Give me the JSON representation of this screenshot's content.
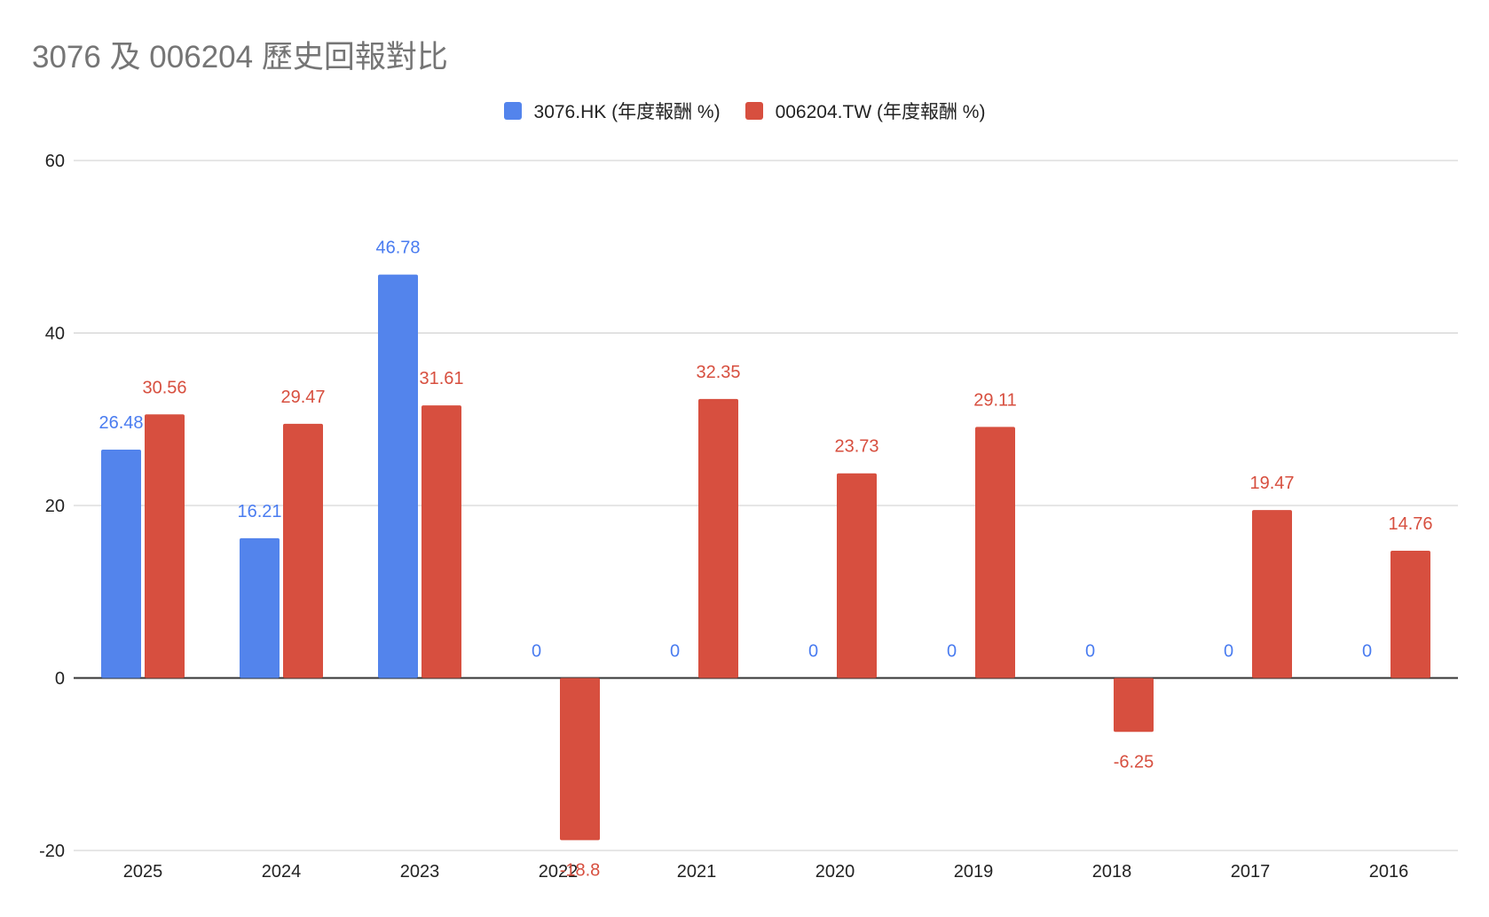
{
  "chart_data": {
    "type": "bar",
    "title": "3076 及 006204 歷史回報對比",
    "categories": [
      "2025",
      "2024",
      "2023",
      "2022",
      "2021",
      "2020",
      "2019",
      "2018",
      "2017",
      "2016"
    ],
    "series": [
      {
        "name": "3076.HK (年度報酬 %)",
        "color": "#5384ec",
        "label_color": "#4a7cf0",
        "values": [
          26.48,
          16.21,
          46.78,
          0,
          0,
          0,
          0,
          0,
          0,
          0
        ],
        "labels": [
          "26.48",
          "16.21",
          "46.78",
          "0",
          "0",
          "0",
          "0",
          "0",
          "0",
          "0"
        ]
      },
      {
        "name": "006204.TW (年度報酬 %)",
        "color": "#d74f3f",
        "label_color": "#d74f3f",
        "values": [
          30.56,
          29.47,
          31.61,
          -18.8,
          32.35,
          23.73,
          29.11,
          -6.25,
          19.47,
          14.76
        ],
        "labels": [
          "30.56",
          "29.47",
          "31.61",
          "-18.8",
          "32.35",
          "23.73",
          "29.11",
          "-6.25",
          "19.47",
          "14.76"
        ]
      }
    ],
    "ylim": [
      -20,
      60
    ],
    "yticks": [
      60,
      40,
      20,
      0,
      -20
    ],
    "xlabel": "",
    "ylabel": "",
    "grid": true,
    "legend": "top-center"
  }
}
